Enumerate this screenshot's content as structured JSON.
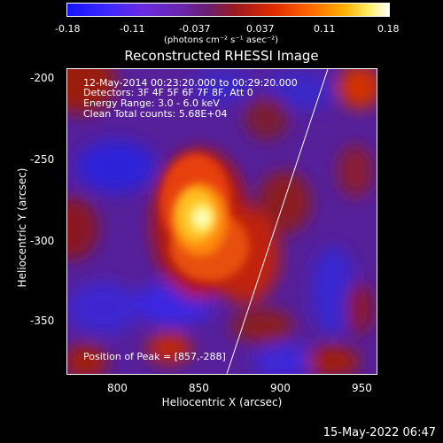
{
  "colorbar": {
    "ticks": [
      "-0.18",
      "-0.11",
      "-0.037",
      "0.037",
      "0.11",
      "0.18"
    ],
    "units": "(photons cm⁻² s⁻¹ asec⁻²)"
  },
  "image": {
    "title": "Reconstructed RHESSI Image",
    "info": [
      "12-May-2014 00:23:20.000 to 00:29:20.000",
      "Detectors: 3F 4F 5F 6F 7F 8F, Att 0",
      "Energy Range: 3.0 - 6.0 keV",
      "Clean     Total counts: 5.68E+04"
    ],
    "peak": "Position of Peak = [857,-288]",
    "xlabel": "Heliocentric X (arcsec)",
    "ylabel": "Heliocentric Y (arcsec)",
    "xticks": [
      "800",
      "850",
      "900",
      "950"
    ],
    "yticks": [
      "-200",
      "-250",
      "-300",
      "-350"
    ]
  },
  "footer": "15-May-2022 06:47"
}
